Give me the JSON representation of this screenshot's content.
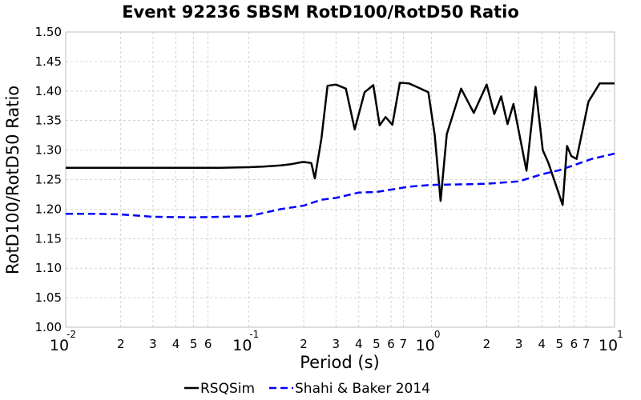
{
  "chart_data": {
    "type": "line",
    "title": "Event 92236 SBSM RotD100/RotD50 Ratio",
    "xlabel": "Period (s)",
    "ylabel": "RotD100/RotD50 Ratio",
    "xscale": "log",
    "xlim": [
      0.01,
      10
    ],
    "ylim": [
      1.0,
      1.5
    ],
    "yticks": [
      "1.00",
      "1.05",
      "1.10",
      "1.15",
      "1.20",
      "1.25",
      "1.30",
      "1.35",
      "1.40",
      "1.45",
      "1.50"
    ],
    "xticks_major": [
      {
        "base": "10",
        "exp": "-2",
        "value": 0.01
      },
      {
        "base": "10",
        "exp": "-1",
        "value": 0.1
      },
      {
        "base": "10",
        "exp": "0",
        "value": 1
      },
      {
        "base": "10",
        "exp": "1",
        "value": 10
      }
    ],
    "xticks_minor": [
      {
        "label": "2",
        "value": 0.02
      },
      {
        "label": "3",
        "value": 0.03
      },
      {
        "label": "4",
        "value": 0.04
      },
      {
        "label": "5",
        "value": 0.05
      },
      {
        "label": "6",
        "value": 0.06
      },
      {
        "label": "2",
        "value": 0.2
      },
      {
        "label": "3",
        "value": 0.3
      },
      {
        "label": "4",
        "value": 0.4
      },
      {
        "label": "5",
        "value": 0.5
      },
      {
        "label": "6",
        "value": 0.6
      },
      {
        "label": "7",
        "value": 0.7
      },
      {
        "label": "2",
        "value": 2
      },
      {
        "label": "3",
        "value": 3
      },
      {
        "label": "4",
        "value": 4
      },
      {
        "label": "5",
        "value": 5
      },
      {
        "label": "6",
        "value": 6
      },
      {
        "label": "7",
        "value": 7
      }
    ],
    "grid": true,
    "legend_position": "bottom",
    "series": [
      {
        "name": "RSQSim",
        "color": "#000000",
        "style": "solid",
        "x": [
          0.01,
          0.0115,
          0.013,
          0.015,
          0.02,
          0.03,
          0.05,
          0.07,
          0.1,
          0.12,
          0.15,
          0.17,
          0.19,
          0.2,
          0.22,
          0.23,
          0.25,
          0.27,
          0.3,
          0.34,
          0.38,
          0.43,
          0.48,
          0.52,
          0.56,
          0.61,
          0.67,
          0.75,
          0.83,
          0.96,
          1.04,
          1.12,
          1.21,
          1.45,
          1.7,
          2.0,
          2.2,
          2.4,
          2.6,
          2.8,
          3.3,
          3.7,
          4.05,
          4.35,
          5.2,
          5.5,
          5.8,
          6.2,
          7.2,
          8.3,
          10.0
        ],
        "y": [
          1.27,
          1.27,
          1.27,
          1.27,
          1.27,
          1.27,
          1.27,
          1.27,
          1.271,
          1.272,
          1.274,
          1.276,
          1.279,
          1.28,
          1.278,
          1.252,
          1.32,
          1.409,
          1.411,
          1.404,
          1.335,
          1.398,
          1.41,
          1.342,
          1.356,
          1.343,
          1.414,
          1.413,
          1.407,
          1.398,
          1.325,
          1.214,
          1.327,
          1.404,
          1.363,
          1.411,
          1.361,
          1.391,
          1.344,
          1.378,
          1.265,
          1.407,
          1.3,
          1.278,
          1.207,
          1.307,
          1.29,
          1.285,
          1.382,
          1.413,
          1.413
        ]
      },
      {
        "name": "Shahi & Baker 2014",
        "color": "#0000ff",
        "style": "dashed",
        "x": [
          0.01,
          0.015,
          0.02,
          0.03,
          0.05,
          0.07,
          0.1,
          0.15,
          0.2,
          0.25,
          0.3,
          0.4,
          0.5,
          0.75,
          1.0,
          1.5,
          2.0,
          3.0,
          4.0,
          5.0,
          7.5,
          10.0
        ],
        "y": [
          1.192,
          1.192,
          1.191,
          1.187,
          1.186,
          1.187,
          1.188,
          1.2,
          1.206,
          1.216,
          1.219,
          1.228,
          1.229,
          1.238,
          1.241,
          1.242,
          1.243,
          1.247,
          1.259,
          1.266,
          1.285,
          1.294
        ]
      }
    ]
  }
}
